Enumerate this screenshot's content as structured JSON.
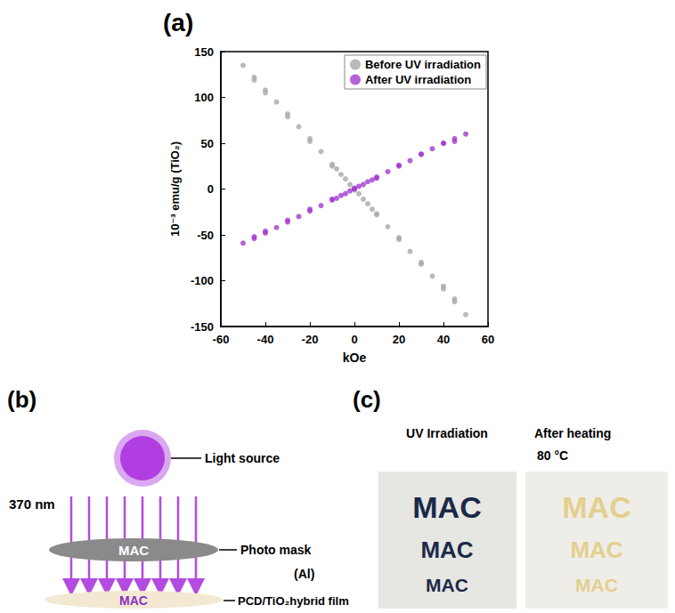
{
  "chart_data": {
    "type": "scatter",
    "title": "(a)",
    "x_label": "kOe",
    "y_label": "10⁻³ emu/g (TiO₂)",
    "x": [
      50,
      45,
      40,
      35,
      30,
      25,
      20,
      15,
      10,
      8,
      6,
      4,
      2,
      0,
      -2,
      -4,
      -6,
      -8,
      -10,
      -15,
      -20,
      -25,
      -30,
      -35,
      -40,
      -45,
      -50,
      -45,
      -40,
      -30,
      -20,
      -10,
      0,
      10,
      20,
      30,
      40,
      45
    ],
    "series": [
      {
        "name": "Before UV irradiation",
        "color": "#a9a9a9",
        "marker": "circle",
        "values": [
          -137,
          -123,
          -109,
          -95,
          -82,
          -68,
          -55,
          -41,
          -27,
          -22,
          -16,
          -11,
          -5,
          0,
          5,
          11,
          16,
          22,
          27,
          41,
          55,
          68,
          82,
          95,
          108,
          122,
          135,
          119,
          105,
          79,
          52,
          25,
          -1,
          -28,
          -53,
          -80,
          -106,
          -120
        ]
      },
      {
        "name": "After UV irradiation",
        "color": "#a23ad0",
        "marker": "circle",
        "values": [
          60,
          55,
          50,
          44,
          38,
          31,
          25,
          19,
          13,
          10,
          8,
          5,
          3,
          0,
          -2,
          -5,
          -7,
          -10,
          -12,
          -18,
          -24,
          -30,
          -36,
          -42,
          -48,
          -54,
          -59,
          -52,
          -46,
          -34,
          -22,
          -11,
          1,
          12,
          26,
          38,
          50,
          52
        ]
      }
    ],
    "xlim": [
      -60,
      60
    ],
    "xticks": [
      -60,
      -40,
      -20,
      0,
      20,
      40,
      60
    ],
    "ylim": [
      -150,
      150
    ],
    "yticks": [
      -150,
      -100,
      -50,
      0,
      50,
      100,
      150
    ],
    "grid": false,
    "legend": "top-right"
  },
  "diagram": {
    "label": "(b)",
    "wavelength": "370 nm",
    "light_source": "Light source",
    "mask": "Photo mask",
    "mask_material": "(Al)",
    "mask_text": "MAC",
    "film": "PCD/TiO₂hybrid film",
    "film_text": "MAC"
  },
  "photos": {
    "label": "(c)",
    "left": {
      "title": "UV Irradiation",
      "texts": [
        "MAC",
        "MAC",
        "MAC"
      ]
    },
    "right": {
      "title": "After heating",
      "subtitle": "80 °C",
      "texts": [
        "MAC",
        "MAC",
        "MAC"
      ]
    }
  }
}
